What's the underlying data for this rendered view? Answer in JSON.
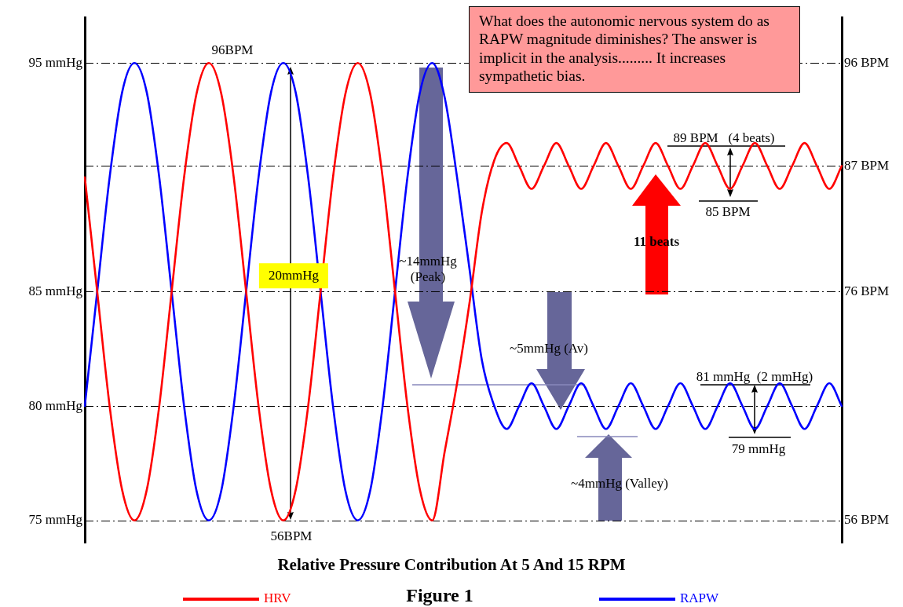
{
  "chart_data": {
    "type": "line",
    "title": "Relative Pressure Contribution At 5 And 15 RPM",
    "categories": [
      null,
      null,
      null,
      null,
      null,
      null,
      null,
      null,
      null,
      null,
      null,
      null,
      null,
      null,
      null,
      null,
      null,
      null,
      null,
      null,
      null,
      null,
      null,
      null,
      null,
      null,
      null,
      null,
      null,
      null,
      null,
      null,
      null,
      null,
      null,
      null,
      null,
      null,
      null,
      null,
      null,
      null,
      null,
      null,
      null,
      null,
      null,
      null,
      null,
      null,
      null,
      null,
      null,
      null,
      null,
      null,
      null,
      null,
      null,
      null,
      null,
      null
    ],
    "series": [
      {
        "name": "HRV",
        "color": "#ff0000",
        "axis": "y2",
        "values": [
          86,
          76,
          66,
          58.7,
          56,
          58.7,
          66,
          76,
          86,
          93.3,
          96,
          93.3,
          86,
          76,
          66,
          58.7,
          56,
          58.7,
          66,
          76,
          86,
          93.3,
          96,
          93.3,
          86,
          76,
          66,
          58.7,
          56,
          62,
          68,
          75,
          83,
          87.5,
          89,
          87,
          85,
          87,
          89,
          87,
          85,
          87,
          89,
          87,
          85,
          87,
          89,
          87,
          85,
          87,
          89,
          87,
          85,
          87,
          89,
          87,
          85,
          87,
          89,
          87,
          85,
          87
        ]
      },
      {
        "name": "RAPW",
        "color": "#0000ff",
        "values": [
          80,
          85,
          90,
          93.7,
          95,
          93.7,
          90,
          85,
          80,
          76.3,
          75,
          76.3,
          80,
          85,
          90,
          93.7,
          95,
          93.7,
          90,
          85,
          80,
          76.3,
          75,
          76.3,
          80,
          85,
          90,
          93.7,
          95,
          93.5,
          90,
          86,
          82,
          80,
          79,
          80,
          81,
          80,
          79,
          80,
          81,
          80,
          79,
          80,
          81,
          80,
          79,
          80,
          81,
          80,
          79,
          80,
          81,
          80,
          79,
          80,
          81,
          80,
          79,
          80,
          81,
          80
        ]
      }
    ],
    "ylim": [
      74,
      97
    ],
    "yticks": [
      {
        "value": 95,
        "label": "95 mmHg"
      },
      {
        "value": 85,
        "label": "85 mmHg"
      },
      {
        "value": 80,
        "label": "80 mmHg"
      },
      {
        "value": 75,
        "label": "75 mmHg"
      }
    ],
    "y2lim": [
      54,
      100
    ],
    "y2ticks": [
      {
        "value": 96,
        "label": "96 BPM"
      },
      {
        "value": 87,
        "label": "87 BPM"
      },
      {
        "value": 76,
        "label": "76 BPM"
      },
      {
        "value": 56,
        "label": "56 BPM"
      }
    ],
    "grid": "y",
    "legend": "bottom",
    "marker": "none",
    "line_style": "solid",
    "annotations": [
      "96BPM",
      "56BPM",
      "20mmHg",
      "~14mmHg (Peak)",
      "~5mmHg (Av)",
      "~4mmHg (Valley)",
      "11 beats",
      "89 BPM   (4 beats)",
      "85 BPM",
      "81 mmHg  (2 mmHg)",
      "79 mmHg",
      "What does the autonomic nervous system do as RAPW magnitude diminishes? The answer is implicit in the analysis......... It increases sympathetic bias.",
      "Figure 1"
    ]
  }
}
